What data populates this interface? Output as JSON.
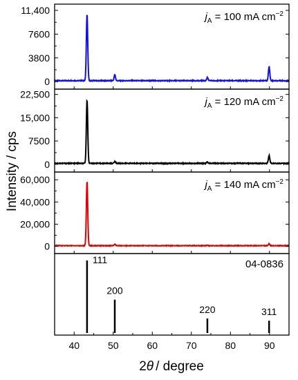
{
  "figure": {
    "ylabel": "Intensity / cps",
    "xlabel_prefix": "2",
    "xlabel_theta": "θ",
    "xlabel_suffix": "/ degree"
  },
  "chart_data": [
    {
      "type": "line",
      "panel": "j_A = 100 mA cm^-2",
      "label": {
        "italic": "j",
        "sub": "A",
        "text": " = 100 mA cm",
        "sup": "−2"
      },
      "color": "#1010e0",
      "xlim": [
        35,
        95
      ],
      "ylim": [
        -1200,
        12400
      ],
      "yticks": [
        0,
        3800,
        7600,
        11400
      ],
      "ytick_labels": [
        "0",
        "3800",
        "7600",
        "11,400"
      ],
      "baseline": 150,
      "peaks": [
        {
          "x": 43.3,
          "y": 10800
        },
        {
          "x": 50.4,
          "y": 1100
        },
        {
          "x": 74.1,
          "y": 650
        },
        {
          "x": 89.9,
          "y": 2400
        }
      ]
    },
    {
      "type": "line",
      "panel": "j_A = 120 mA cm^-2",
      "label": {
        "italic": "j",
        "sub": "A",
        "text": " = 120 mA cm",
        "sup": "−2"
      },
      "color": "#000000",
      "xlim": [
        35,
        95
      ],
      "ylim": [
        -2500,
        24200
      ],
      "yticks": [
        0,
        7500,
        15000,
        22500
      ],
      "ytick_labels": [
        "0",
        "7500",
        "15,000",
        "22,500"
      ],
      "baseline": 300,
      "peaks": [
        {
          "x": 43.3,
          "y": 20700
        },
        {
          "x": 50.4,
          "y": 900
        },
        {
          "x": 74.1,
          "y": 700
        },
        {
          "x": 89.9,
          "y": 2800
        }
      ]
    },
    {
      "type": "line",
      "panel": "j_A = 140 mA cm^-2",
      "label": {
        "italic": "j",
        "sub": "A",
        "text": " = 140 mA cm",
        "sup": "−2"
      },
      "color": "#e00000",
      "xlim": [
        35,
        95
      ],
      "ylim": [
        -6500,
        67000
      ],
      "yticks": [
        0,
        20000,
        40000,
        60000
      ],
      "ytick_labels": [
        "0",
        "20,000",
        "40,000",
        "60,000"
      ],
      "baseline": 600,
      "peaks": [
        {
          "x": 43.3,
          "y": 58500
        },
        {
          "x": 50.4,
          "y": 1800
        },
        {
          "x": 74.1,
          "y": 900
        },
        {
          "x": 89.9,
          "y": 2300
        }
      ]
    },
    {
      "type": "bar",
      "panel": "reference 04-0836",
      "title": "04-0836",
      "color": "#000000",
      "xlim": [
        35,
        95
      ],
      "ylim": [
        0,
        100
      ],
      "xticks": [
        40,
        50,
        60,
        70,
        80,
        90
      ],
      "xtick_labels": [
        "40",
        "50",
        "60",
        "70",
        "80",
        "90"
      ],
      "lines": [
        {
          "x": 43.3,
          "y": 100,
          "label": "111"
        },
        {
          "x": 50.4,
          "y": 46,
          "label": "200"
        },
        {
          "x": 74.1,
          "y": 20,
          "label": "220"
        },
        {
          "x": 89.9,
          "y": 17,
          "label": "311"
        }
      ]
    }
  ]
}
